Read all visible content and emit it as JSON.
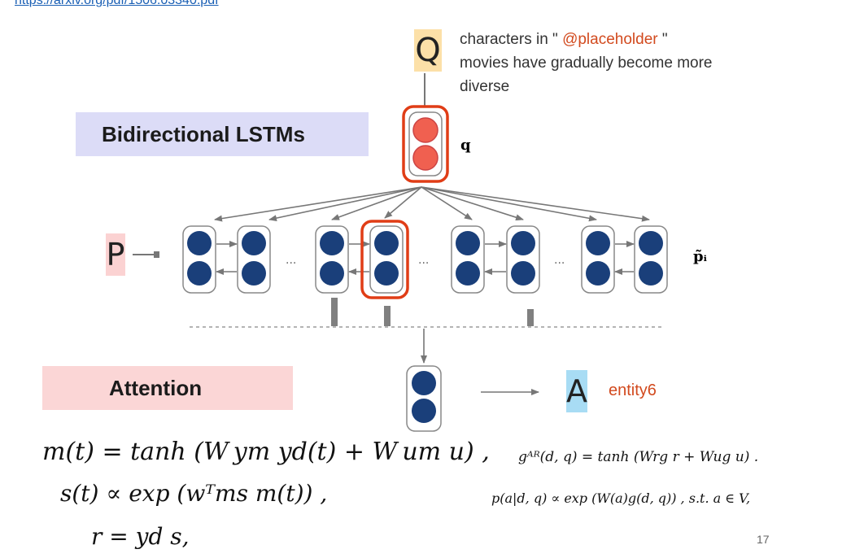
{
  "header": {
    "link_text": "https://arxiv.org/pdf/1506.03340.pdf"
  },
  "query": {
    "symbol": "Q",
    "text_prefix": "characters in \"",
    "placeholder": "@placeholder",
    "text_suffix": "\"",
    "text_line2": "movies have gradually become more",
    "text_line3": "diverse",
    "vector_label": "q"
  },
  "banners": {
    "lstm": "Bidirectional LSTMs",
    "attention": "Attention"
  },
  "passage": {
    "symbol": "P",
    "vector_label": "p̃ᵢ",
    "ellipsis": "..."
  },
  "answer": {
    "symbol": "A",
    "entity": "entity6"
  },
  "equations": {
    "m": "m(t) = tanh (W ym yd(t) + W um u) ,",
    "s": "s(t) ∝ exp (wᵀms m(t)) ,",
    "r": "r = yd s,",
    "g": "gᴬᴿ(d, q) = tanh (Wrg r + Wug u) .",
    "p": "p(a|d, q) ∝ exp (W(a)g(d, q)) ,    s.t. a ∈ V,"
  },
  "page_number": "17",
  "colors": {
    "highlight": "#e03d16",
    "node_dark": "#1a3f7a",
    "node_query": "#f06050",
    "lstm_banner": "#dcdcf7",
    "attention_banner": "#fbd6d6"
  }
}
